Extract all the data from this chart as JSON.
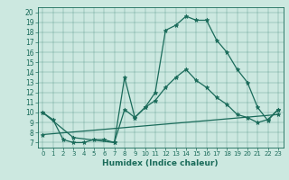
{
  "title": "",
  "xlabel": "Humidex (Indice chaleur)",
  "bg_color": "#cce8e0",
  "line_color": "#1a6b5a",
  "xlim": [
    -0.5,
    23.5
  ],
  "ylim": [
    6.5,
    20.5
  ],
  "xticks": [
    0,
    1,
    2,
    3,
    4,
    5,
    6,
    7,
    8,
    9,
    10,
    11,
    12,
    13,
    14,
    15,
    16,
    17,
    18,
    19,
    20,
    21,
    22,
    23
  ],
  "yticks": [
    7,
    8,
    9,
    10,
    11,
    12,
    13,
    14,
    15,
    16,
    17,
    18,
    19,
    20
  ],
  "series": [
    {
      "x": [
        0,
        1,
        2,
        3,
        4,
        5,
        6,
        7,
        8,
        9,
        10,
        11,
        12,
        13,
        14,
        15,
        16,
        17,
        18,
        19,
        20,
        21,
        22,
        23
      ],
      "y": [
        10,
        9.3,
        7.3,
        7.0,
        7.0,
        7.3,
        7.3,
        7.0,
        13.5,
        9.5,
        10.5,
        12.0,
        18.2,
        18.7,
        19.6,
        19.2,
        19.2,
        17.2,
        16.0,
        14.3,
        13.0,
        10.5,
        9.2,
        10.3
      ]
    },
    {
      "x": [
        0,
        3,
        7,
        8,
        9,
        10,
        11,
        12,
        13,
        14,
        15,
        16,
        17,
        18,
        19,
        20,
        21,
        22,
        23
      ],
      "y": [
        10,
        7.5,
        7.0,
        10.3,
        9.5,
        10.5,
        11.2,
        12.5,
        13.5,
        14.3,
        13.2,
        12.5,
        11.5,
        10.8,
        9.8,
        9.5,
        9.0,
        9.3,
        10.3
      ]
    },
    {
      "x": [
        0,
        23
      ],
      "y": [
        7.8,
        9.8
      ]
    }
  ]
}
